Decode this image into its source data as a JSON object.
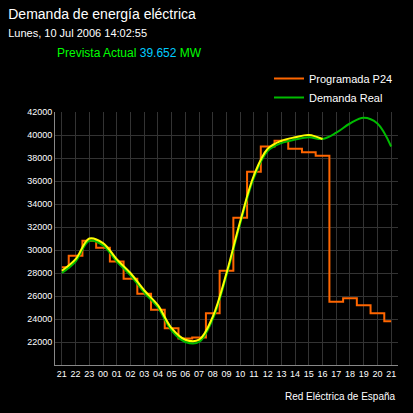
{
  "chart_data": {
    "type": "line",
    "title": "Demanda de energía eléctrica",
    "subtitle": "Lunes, 10 Jul 2006 14:02:55",
    "annotations": [
      [
        {
          "text": "Prevista Actual",
          "color": "#00ff00"
        },
        {
          "text": "39.652",
          "color": "#00ccff"
        },
        {
          "text": "MW",
          "color": "#00ff00"
        }
      ],
      [
        {
          "text": "Red Eléctrica de España",
          "color": "#ffffff"
        }
      ]
    ],
    "categories": [
      "21",
      "22",
      "23",
      "00",
      "01",
      "02",
      "03",
      "04",
      "05",
      "06",
      "07",
      "08",
      "09",
      "10",
      "11",
      "12",
      "13",
      "14",
      "15",
      "16",
      "17",
      "18",
      "19",
      "20",
      "21"
    ],
    "series": [
      {
        "name": "Programada P24",
        "color": "#ff6600",
        "line_style": "step",
        "values": [
          28500,
          29500,
          30800,
          30200,
          29000,
          27500,
          26200,
          24800,
          23200,
          22300,
          22400,
          24500,
          28200,
          32800,
          36800,
          39000,
          39500,
          38800,
          38500,
          38200,
          25500,
          25800,
          25200,
          24500,
          23800
        ]
      },
      {
        "name": "Demanda Real",
        "color": "#00bb00",
        "line_style": "smooth",
        "values": [
          28000,
          29000,
          30800,
          30400,
          29000,
          27800,
          26300,
          25000,
          23000,
          22000,
          22000,
          24000,
          27800,
          32300,
          36300,
          38600,
          39300,
          39600,
          39800,
          39652,
          40200,
          41000,
          41500,
          41000,
          39000
        ]
      },
      {
        "color": "#ffff00",
        "line_style": "smooth",
        "values": [
          28200,
          29200,
          31000,
          30600,
          29200,
          28000,
          26500,
          25200,
          23200,
          22200,
          22200,
          24200,
          28000,
          32500,
          36500,
          38800,
          39500,
          39800,
          40000,
          39652,
          null,
          null,
          null,
          null,
          null
        ]
      }
    ],
    "ylim": [
      20000,
      42000
    ],
    "yticks": [
      22000,
      24000,
      26000,
      28000,
      30000,
      32000,
      34000,
      36000,
      38000,
      40000,
      42000
    ],
    "grid": true,
    "legend": "upper right"
  }
}
